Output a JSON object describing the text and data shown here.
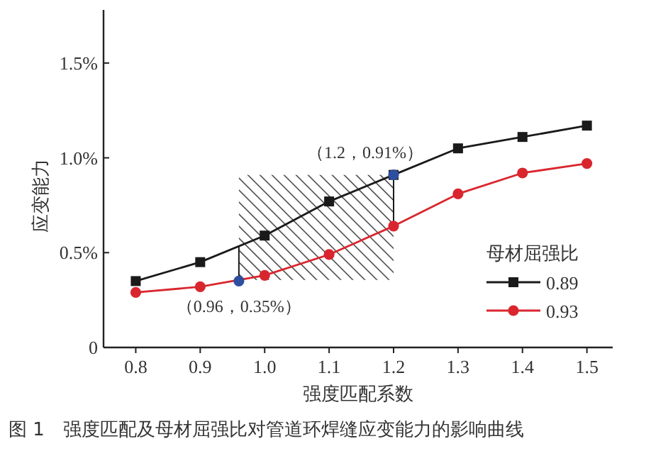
{
  "chart_data": {
    "type": "line",
    "xlabel": "强度匹配系数",
    "ylabel": "应变能力",
    "legend_title": "母材屈强比",
    "legend": "bottom right",
    "grid": false,
    "x": [
      0.8,
      0.9,
      1.0,
      1.1,
      1.2,
      1.3,
      1.4,
      1.5
    ],
    "xlim": [
      0.75,
      1.54
    ],
    "ylim": [
      0,
      1.78
    ],
    "xticks": [
      0.8,
      0.9,
      {
        "value": 1.0,
        "label": "1.0"
      },
      1.1,
      1.2,
      1.3,
      1.4,
      1.5
    ],
    "yticks": [
      0,
      {
        "value": 0.5,
        "label": "0.5%"
      },
      {
        "value": 1.0,
        "label": "1.0%"
      },
      {
        "value": 1.5,
        "label": "1.5%"
      }
    ],
    "series": [
      {
        "name": "0.89",
        "color": "#1a1a1a",
        "marker": "square",
        "values": [
          0.35,
          0.45,
          0.59,
          0.77,
          0.91,
          1.05,
          1.11,
          1.17
        ]
      },
      {
        "name": "0.93",
        "color": "#d9262e",
        "marker": "circle",
        "values": [
          0.29,
          0.32,
          0.38,
          0.49,
          0.64,
          0.81,
          0.92,
          0.97
        ]
      },
      {
        "type": "scatter",
        "color": "#2e4fa0",
        "marker": "circle",
        "x": [
          0.96,
          1.2
        ],
        "values": [
          0.35,
          0.91
        ]
      }
    ],
    "bands": [
      {
        "axis": "x",
        "from": 0.96,
        "to": 1.2,
        "color": "#1a1a1a"
      }
    ],
    "annotations": [
      {
        "text": "（0.96，0.35%）",
        "x": 0.96,
        "y": 0.35
      },
      {
        "text": "（1.2，0.91%）",
        "x": 1.2,
        "y": 0.91
      },
      "图 1　强度匹配及母材屈强比对管道环焊缝应变能力的影响曲线"
    ]
  }
}
